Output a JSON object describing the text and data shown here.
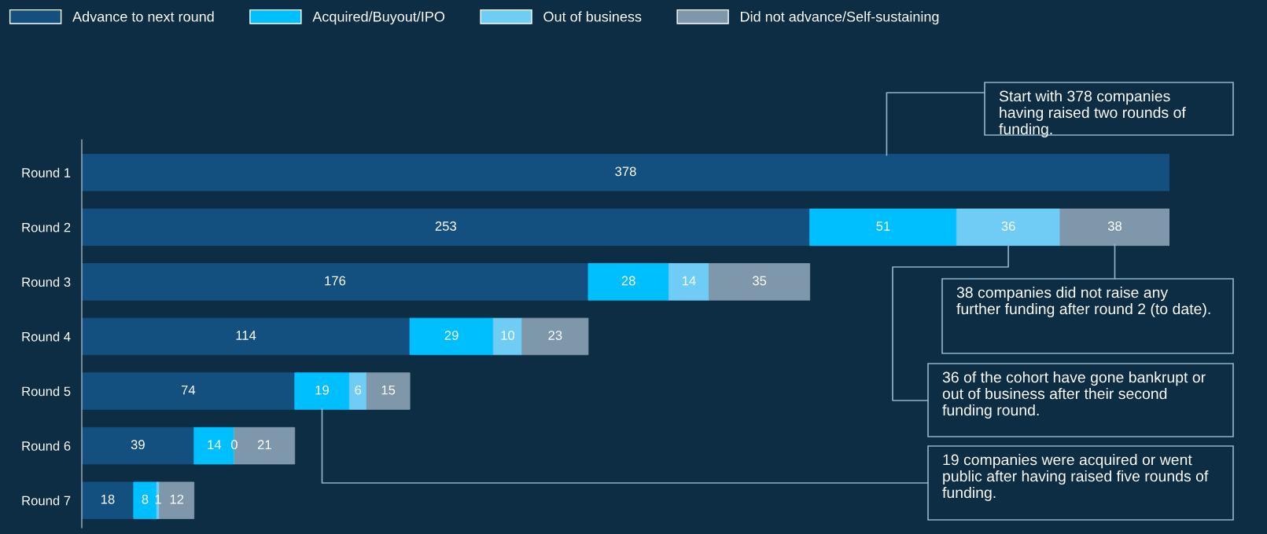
{
  "chart_data": {
    "type": "bar",
    "orientation": "horizontal",
    "stacked": true,
    "data_labels": true,
    "legend": "top left",
    "grid": false,
    "categories": [
      "Round 1",
      "Round 2",
      "Round 3",
      "Round 4",
      "Round 5",
      "Round 6",
      "Round 7"
    ],
    "series": [
      {
        "name": "Advance to next round",
        "color": "#14507f",
        "values": [
          378,
          253,
          176,
          114,
          74,
          39,
          18
        ]
      },
      {
        "name": "Acquired/Buyout/IPO",
        "color": "#00bfff",
        "values": [
          null,
          51,
          28,
          29,
          19,
          14,
          8
        ]
      },
      {
        "name": "Out of business",
        "color": "#6fcdf5",
        "values": [
          null,
          36,
          14,
          10,
          6,
          0,
          1
        ]
      },
      {
        "name": "Did not advance/Self-sustaining",
        "color": "#7f97ab",
        "values": [
          null,
          38,
          35,
          23,
          15,
          21,
          12
        ]
      }
    ],
    "annotations": [
      "Start with 378 companies having raised two rounds of funding.",
      "38 companies did not raise any further funding after round 2 (to date).",
      "36 of the cohort have gone bankrupt or out of business after their second funding round.",
      "19 companies were acquired or went public after having raised five rounds of funding."
    ]
  }
}
